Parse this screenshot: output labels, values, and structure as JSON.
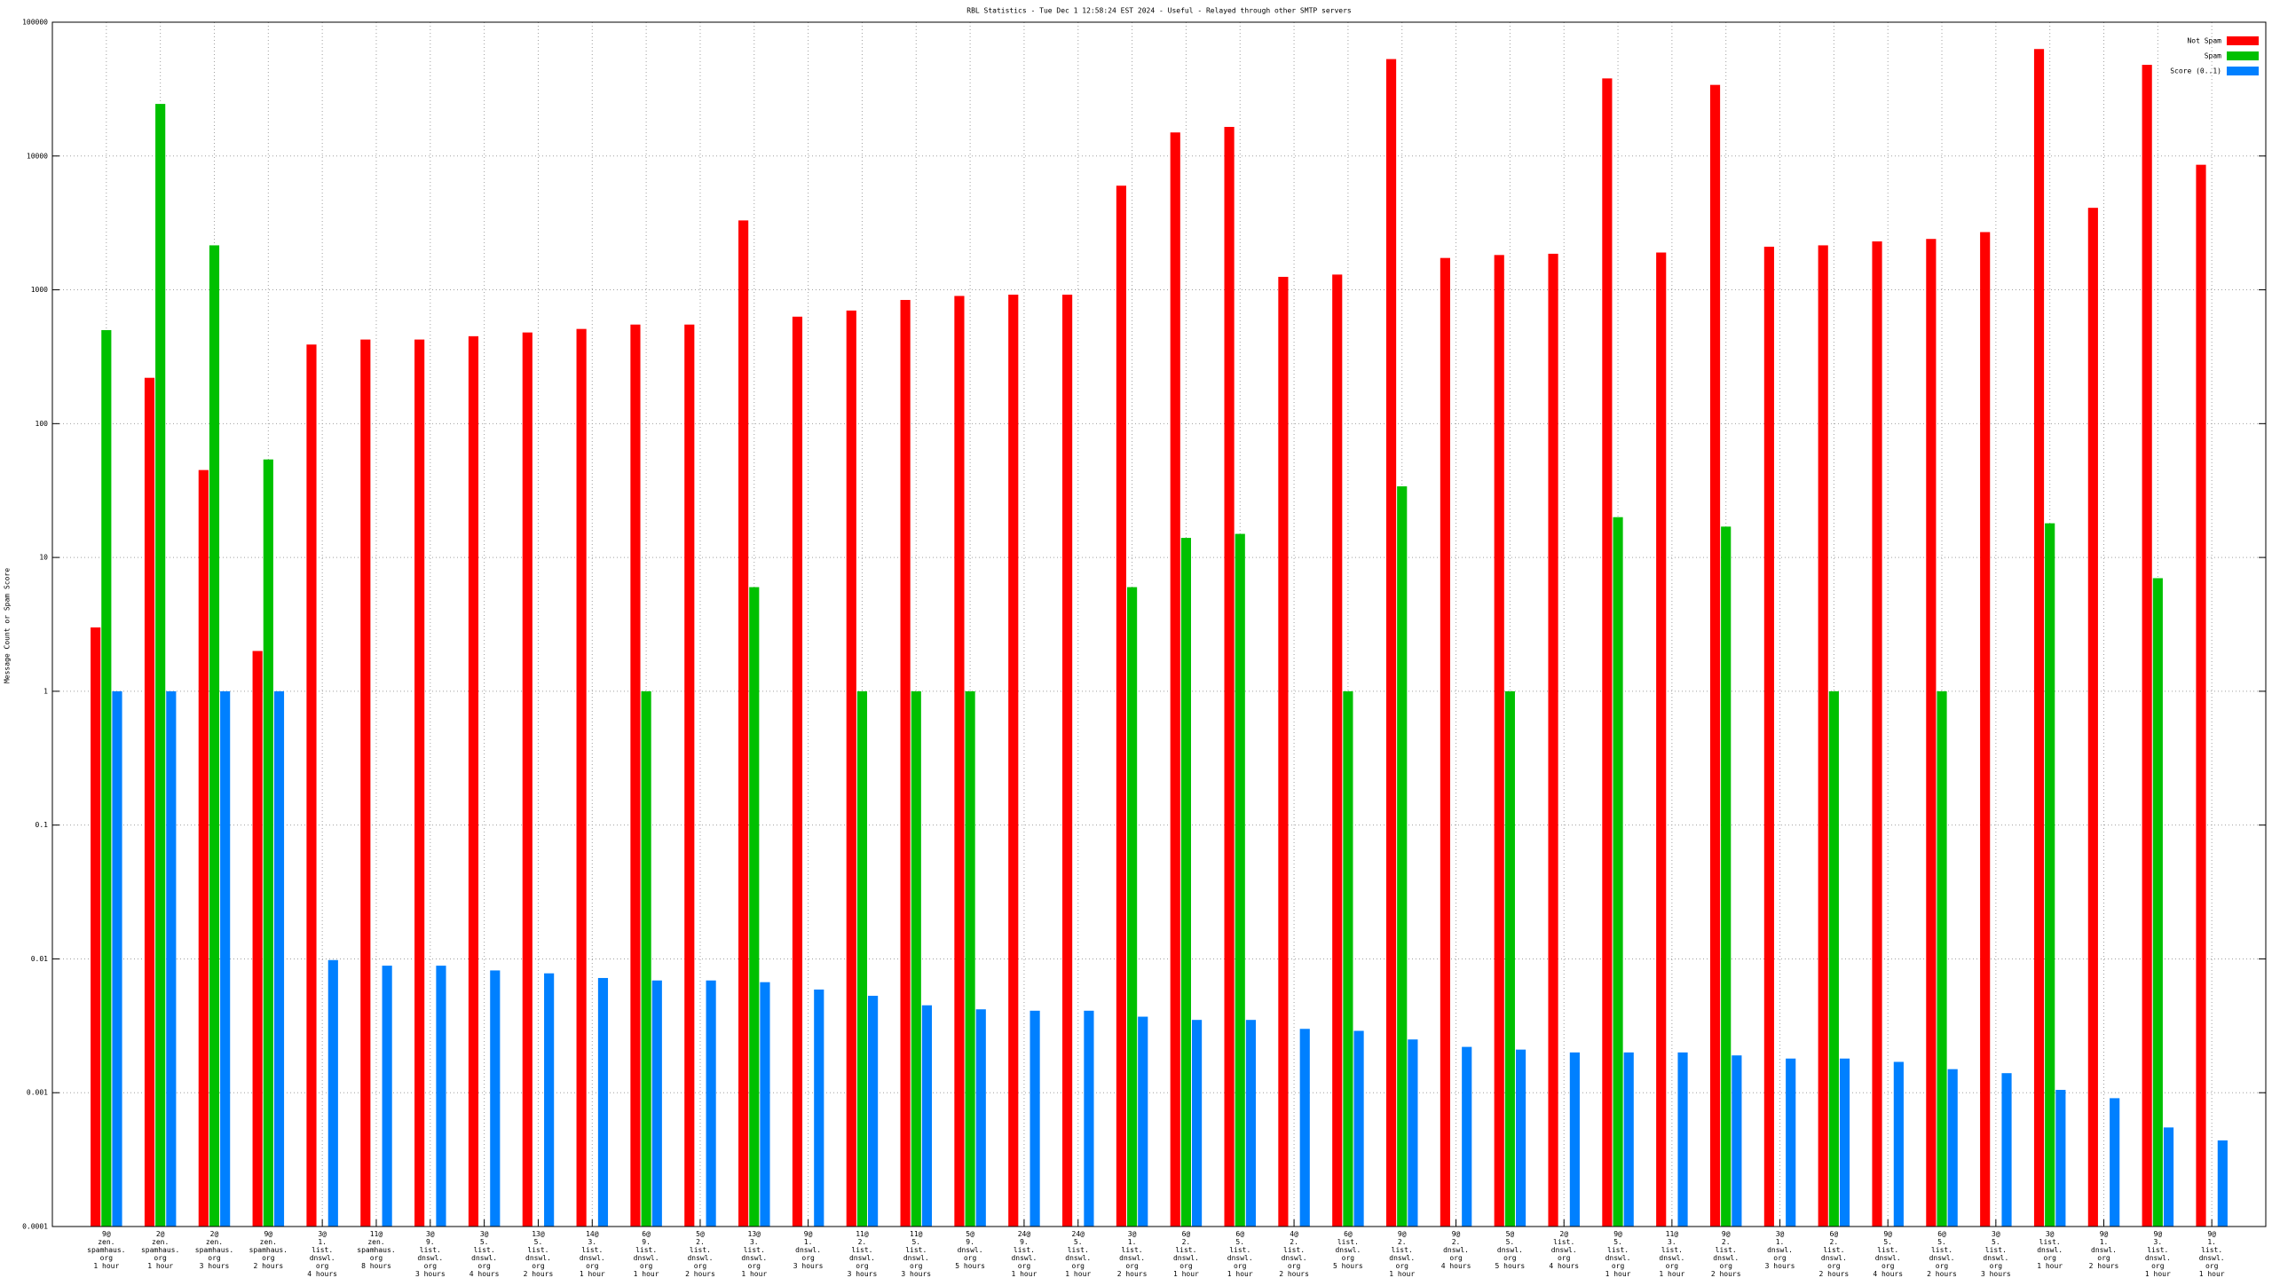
{
  "chart_data": {
    "type": "bar",
    "title": "RBL Statistics - Tue Dec  1 12:58:24 EST 2024 - Useful - Relayed through other SMTP servers",
    "y_label": "Message Count or Spam Score",
    "log_scale": true,
    "grid": true,
    "legend": "top-right",
    "categories": [
      [
        "9@",
        "zen.",
        "spamhaus.",
        "org",
        "1 hour"
      ],
      [
        "2@",
        "zen.",
        "spamhaus.",
        "org",
        "1 hour"
      ],
      [
        "2@",
        "zen.",
        "spamhaus.",
        "org",
        "3 hours"
      ],
      [
        "9@",
        "zen.",
        "spamhaus.",
        "org",
        "2 hours"
      ],
      [
        "3@",
        "1.",
        "list.",
        "dnswl.",
        "org",
        "4 hours"
      ],
      [
        "11@",
        "zen.",
        "spamhaus.",
        "org",
        "8 hours"
      ],
      [
        "3@",
        "9.",
        "list.",
        "dnswl.",
        "org",
        "3 hours"
      ],
      [
        "3@",
        "5.",
        "list.",
        "dnswl.",
        "org",
        "4 hours"
      ],
      [
        "13@",
        "5.",
        "list.",
        "dnswl.",
        "org",
        "2 hours"
      ],
      [
        "14@",
        "3.",
        "list.",
        "dnswl.",
        "org",
        "1 hour"
      ],
      [
        "6@",
        "9.",
        "list.",
        "dnswl.",
        "org",
        "1 hour"
      ],
      [
        "5@",
        "2.",
        "list.",
        "dnswl.",
        "org",
        "2 hours"
      ],
      [
        "13@",
        "3.",
        "list.",
        "dnswl.",
        "org",
        "1 hour"
      ],
      [
        "9@",
        "1.",
        "dnswl.",
        "org",
        "3 hours"
      ],
      [
        "11@",
        "2.",
        "list.",
        "dnswl.",
        "org",
        "3 hours"
      ],
      [
        "11@",
        "5.",
        "list.",
        "dnswl.",
        "org",
        "3 hours"
      ],
      [
        "5@",
        "9.",
        "dnswl.",
        "org",
        "5 hours"
      ],
      [
        "24@",
        "9.",
        "list.",
        "dnswl.",
        "org",
        "1 hour"
      ],
      [
        "24@",
        "5.",
        "list.",
        "dnswl.",
        "org",
        "1 hour"
      ],
      [
        "3@",
        "1.",
        "list.",
        "dnswl.",
        "org",
        "2 hours"
      ],
      [
        "6@",
        "2.",
        "list.",
        "dnswl.",
        "org",
        "1 hour"
      ],
      [
        "6@",
        "5.",
        "list.",
        "dnswl.",
        "org",
        "1 hour"
      ],
      [
        "4@",
        "2.",
        "list.",
        "dnswl.",
        "org",
        "2 hours"
      ],
      [
        "6@",
        "list.",
        "dnswl.",
        "org",
        "5 hours"
      ],
      [
        "9@",
        "2.",
        "list.",
        "dnswl.",
        "org",
        "1 hour"
      ],
      [
        "9@",
        "2.",
        "dnswl.",
        "org",
        "4 hours"
      ],
      [
        "5@",
        "5.",
        "dnswl.",
        "org",
        "5 hours"
      ],
      [
        "2@",
        "list.",
        "dnswl.",
        "org",
        "4 hours"
      ],
      [
        "9@",
        "5.",
        "list.",
        "dnswl.",
        "org",
        "1 hour"
      ],
      [
        "11@",
        "3.",
        "list.",
        "dnswl.",
        "org",
        "1 hour"
      ],
      [
        "9@",
        "2.",
        "list.",
        "dnswl.",
        "org",
        "2 hours"
      ],
      [
        "3@",
        "1.",
        "dnswl.",
        "org",
        "3 hours"
      ],
      [
        "6@",
        "2.",
        "list.",
        "dnswl.",
        "org",
        "2 hours"
      ],
      [
        "9@",
        "5.",
        "list.",
        "dnswl.",
        "org",
        "4 hours"
      ],
      [
        "6@",
        "5.",
        "list.",
        "dnswl.",
        "org",
        "2 hours"
      ],
      [
        "3@",
        "5.",
        "list.",
        "dnswl.",
        "org",
        "3 hours"
      ],
      [
        "3@",
        "list.",
        "dnswl.",
        "org",
        "1 hour"
      ],
      [
        "9@",
        "1.",
        "dnswl.",
        "org",
        "2 hours"
      ],
      [
        "9@",
        "3.",
        "list.",
        "dnswl.",
        "org",
        "1 hour"
      ],
      [
        "9@",
        "1.",
        "list.",
        "dnswl.",
        "org",
        "1 hour"
      ]
    ],
    "series": [
      {
        "name": "Not Spam",
        "color": "#ff0000",
        "values": [
          3,
          220,
          45,
          2,
          390,
          425,
          425,
          450,
          480,
          510,
          550,
          550,
          3300,
          630,
          700,
          840,
          900,
          920,
          920,
          6000,
          15000,
          16500,
          1250,
          1300,
          53000,
          1730,
          1820,
          1860,
          38000,
          1900,
          34000,
          2100,
          2150,
          2300,
          2400,
          2700,
          63000,
          4100,
          48000,
          8600
        ]
      },
      {
        "name": "Spam",
        "color": "#00c000",
        "values": [
          500,
          24500,
          2150,
          54,
          null,
          null,
          null,
          null,
          null,
          null,
          1,
          null,
          6,
          null,
          1,
          1,
          1,
          null,
          null,
          6,
          14,
          15,
          null,
          1,
          34,
          null,
          1,
          null,
          20,
          null,
          17,
          null,
          1,
          null,
          1,
          null,
          18,
          null,
          7,
          null
        ]
      },
      {
        "name": "Score (0..1)",
        "color": "#0080ff",
        "values": [
          1,
          1,
          1,
          1,
          0.0098,
          0.0089,
          0.0089,
          0.0082,
          0.0078,
          0.0072,
          0.0069,
          0.0069,
          0.0067,
          0.0059,
          0.0053,
          0.0045,
          0.0042,
          0.0041,
          0.0041,
          0.0037,
          0.0035,
          0.0035,
          0.003,
          0.0029,
          0.0025,
          0.0022,
          0.0021,
          0.002,
          0.002,
          0.002,
          0.0019,
          0.0018,
          0.0018,
          0.0017,
          0.0015,
          0.0014,
          0.00105,
          0.00091,
          0.00055,
          0.00044
        ]
      }
    ],
    "ylim": [
      0.0001,
      100000
    ],
    "yticks": [
      0.0001,
      0.001,
      0.01,
      0.1,
      1,
      10,
      100,
      1000,
      10000,
      100000
    ]
  }
}
